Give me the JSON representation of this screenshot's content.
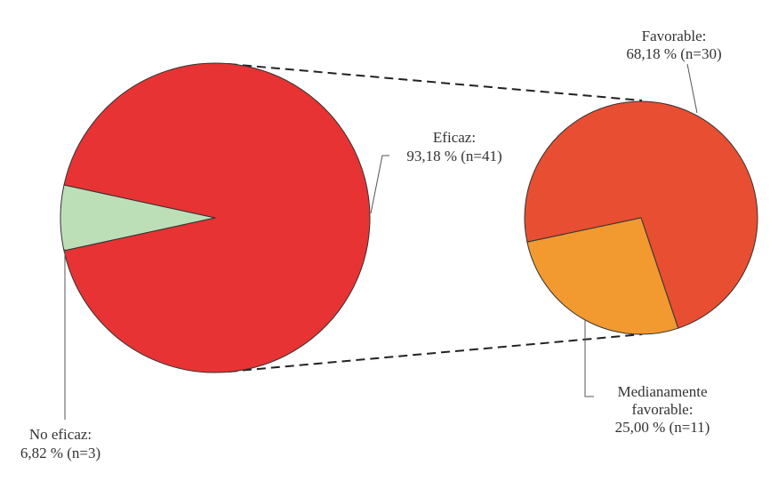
{
  "chart_data": {
    "type": "pie",
    "subtype": "pie-of-pie",
    "main": {
      "slices": [
        {
          "label": "No eficaz:",
          "value_text": "6,82 % (n=3)",
          "percent": 6.82,
          "n": 3,
          "color": "#bcdfb7"
        },
        {
          "label": "Eficaz:",
          "value_text": "93,18 % (n=41)",
          "percent": 93.18,
          "n": 41,
          "color": "#e73333"
        }
      ]
    },
    "breakdown": {
      "parent": "Eficaz:",
      "slices": [
        {
          "label": "Favorable:",
          "value_text": "68,18 % (n=30)",
          "percent": 68.18,
          "n": 30,
          "color": "#e84e31"
        },
        {
          "label": "Medianamente favorable:",
          "label_lines": [
            "Medianamente",
            "favorable:"
          ],
          "value_text": "25,00 % (n=11)",
          "percent": 25.0,
          "n": 11,
          "color": "#f29a30"
        }
      ]
    },
    "legend": "none",
    "grid": false
  }
}
